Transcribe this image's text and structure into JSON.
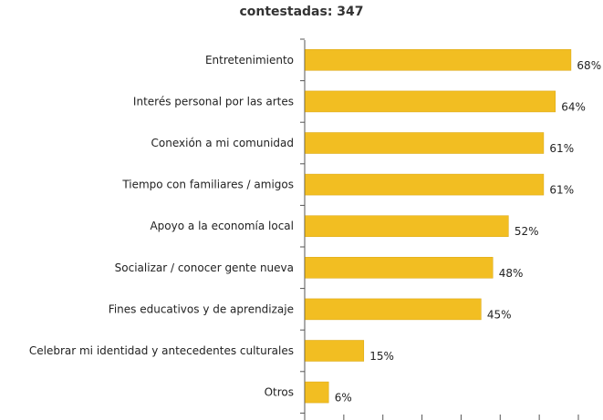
{
  "title": "contestadas: 347",
  "colors": {
    "bar": "#F2BE22",
    "bar_edge": "#D9A50F",
    "axis": "#555555",
    "text": "#222222"
  },
  "chart_data": {
    "type": "bar",
    "orientation": "horizontal",
    "title": "contestadas: 347",
    "categories": [
      "Entretenimiento",
      "Interés personal por las artes",
      "Conexión a mi comunidad",
      "Tiempo con familiares / amigos",
      "Apoyo a la economía local",
      "Socializar / conocer gente nueva",
      "Fines educativos y de aprendizaje",
      "Celebrar mi identidad y antecedentes culturales",
      "Otros"
    ],
    "values": [
      68,
      64,
      61,
      61,
      52,
      48,
      45,
      15,
      6
    ],
    "value_labels": [
      "68%",
      "64%",
      "61%",
      "61%",
      "52%",
      "48%",
      "45%",
      "15%",
      "6%"
    ],
    "xlim": [
      0,
      70
    ],
    "grid": false
  }
}
